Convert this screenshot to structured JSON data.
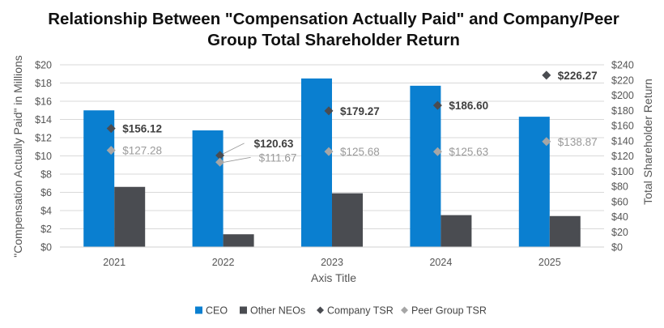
{
  "chart_data": {
    "type": "bar",
    "title_lines": [
      "Relationship Between \"Compensation Actually Paid\" and Company/Peer",
      "Group Total Shareholder Return"
    ],
    "categories": [
      "2021",
      "2022",
      "2023",
      "2024",
      "2025"
    ],
    "xlabel": "Axis Title",
    "ylabel": "\"Compensation Actually Paid\" in Millions",
    "y2label": "Total Shareholder Return",
    "ylim": [
      0,
      20
    ],
    "y2lim": [
      0,
      240
    ],
    "yticks": [
      "$0",
      "$2",
      "$4",
      "$6",
      "$8",
      "$10",
      "$12",
      "$14",
      "$16",
      "$18",
      "$20"
    ],
    "y2ticks": [
      "$0",
      "$20",
      "$40",
      "$60",
      "$80",
      "$100",
      "$120",
      "$140",
      "$160",
      "$180",
      "$200",
      "$220",
      "$240"
    ],
    "grid": true,
    "legend_position": "bottom",
    "series": [
      {
        "name": "CEO",
        "kind": "bar",
        "axis": "left",
        "color": "#0a7fd0",
        "values": [
          15.0,
          12.8,
          18.5,
          17.7,
          14.3
        ]
      },
      {
        "name": "Other NEOs",
        "kind": "bar",
        "axis": "left",
        "color": "#4a4c51",
        "values": [
          6.6,
          1.4,
          5.9,
          3.5,
          3.4
        ]
      },
      {
        "name": "Company TSR",
        "kind": "marker",
        "axis": "right",
        "color": "#4a4c51",
        "values": [
          156.12,
          120.63,
          179.27,
          186.6,
          226.27
        ],
        "labels": [
          "$156.12",
          "$120.63",
          "$179.27",
          "$186.60",
          "$226.27"
        ]
      },
      {
        "name": "Peer Group TSR",
        "kind": "marker",
        "axis": "right",
        "color": "#a6a6a6",
        "values": [
          127.28,
          111.67,
          125.68,
          125.63,
          138.87
        ],
        "labels": [
          "$127.28",
          "$111.67",
          "$125.68",
          "$125.63",
          "$138.87"
        ]
      }
    ]
  }
}
